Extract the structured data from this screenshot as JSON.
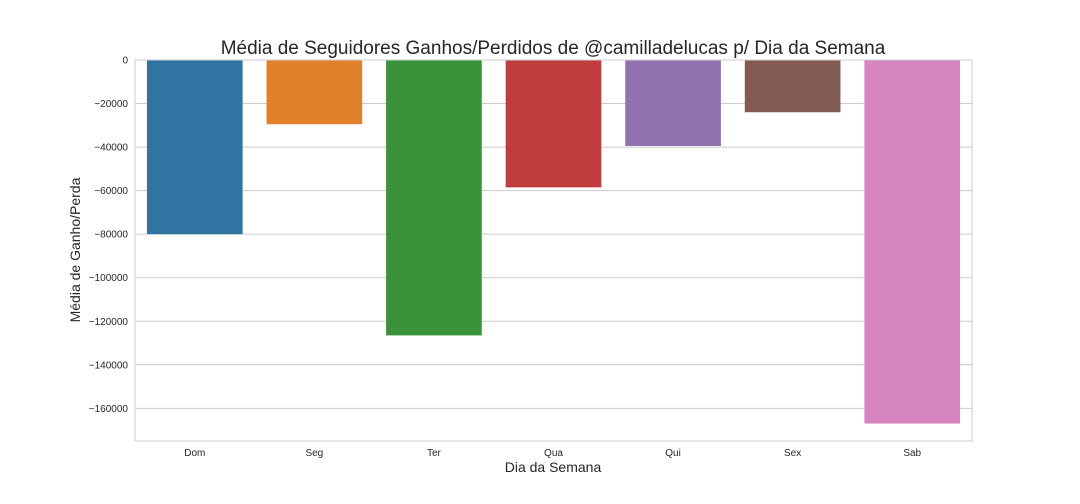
{
  "chart_data": {
    "type": "bar",
    "title": "Média de Seguidores Ganhos/Perdidos de @camilladelucas p/ Dia da Semana",
    "xlabel": "Dia da Semana",
    "ylabel": "Média de Ganho/Perda",
    "categories": [
      "Dom",
      "Seg",
      "Ter",
      "Qua",
      "Qui",
      "Sex",
      "Sab"
    ],
    "values": [
      -80000,
      -29500,
      -126500,
      -58500,
      -39500,
      -24000,
      -167000
    ],
    "colors": [
      "#3274a1",
      "#e1812c",
      "#3a923a",
      "#c03d3e",
      "#9372b2",
      "#845b53",
      "#d684bd"
    ],
    "ylim": [
      -175000,
      0
    ],
    "yticks": [
      0,
      -20000,
      -40000,
      -60000,
      -80000,
      -100000,
      -120000,
      -140000,
      -160000
    ],
    "ytick_labels": [
      "0",
      "−20000",
      "−40000",
      "−60000",
      "−80000",
      "−100000",
      "−120000",
      "−140000",
      "−160000"
    ],
    "grid": true
  }
}
